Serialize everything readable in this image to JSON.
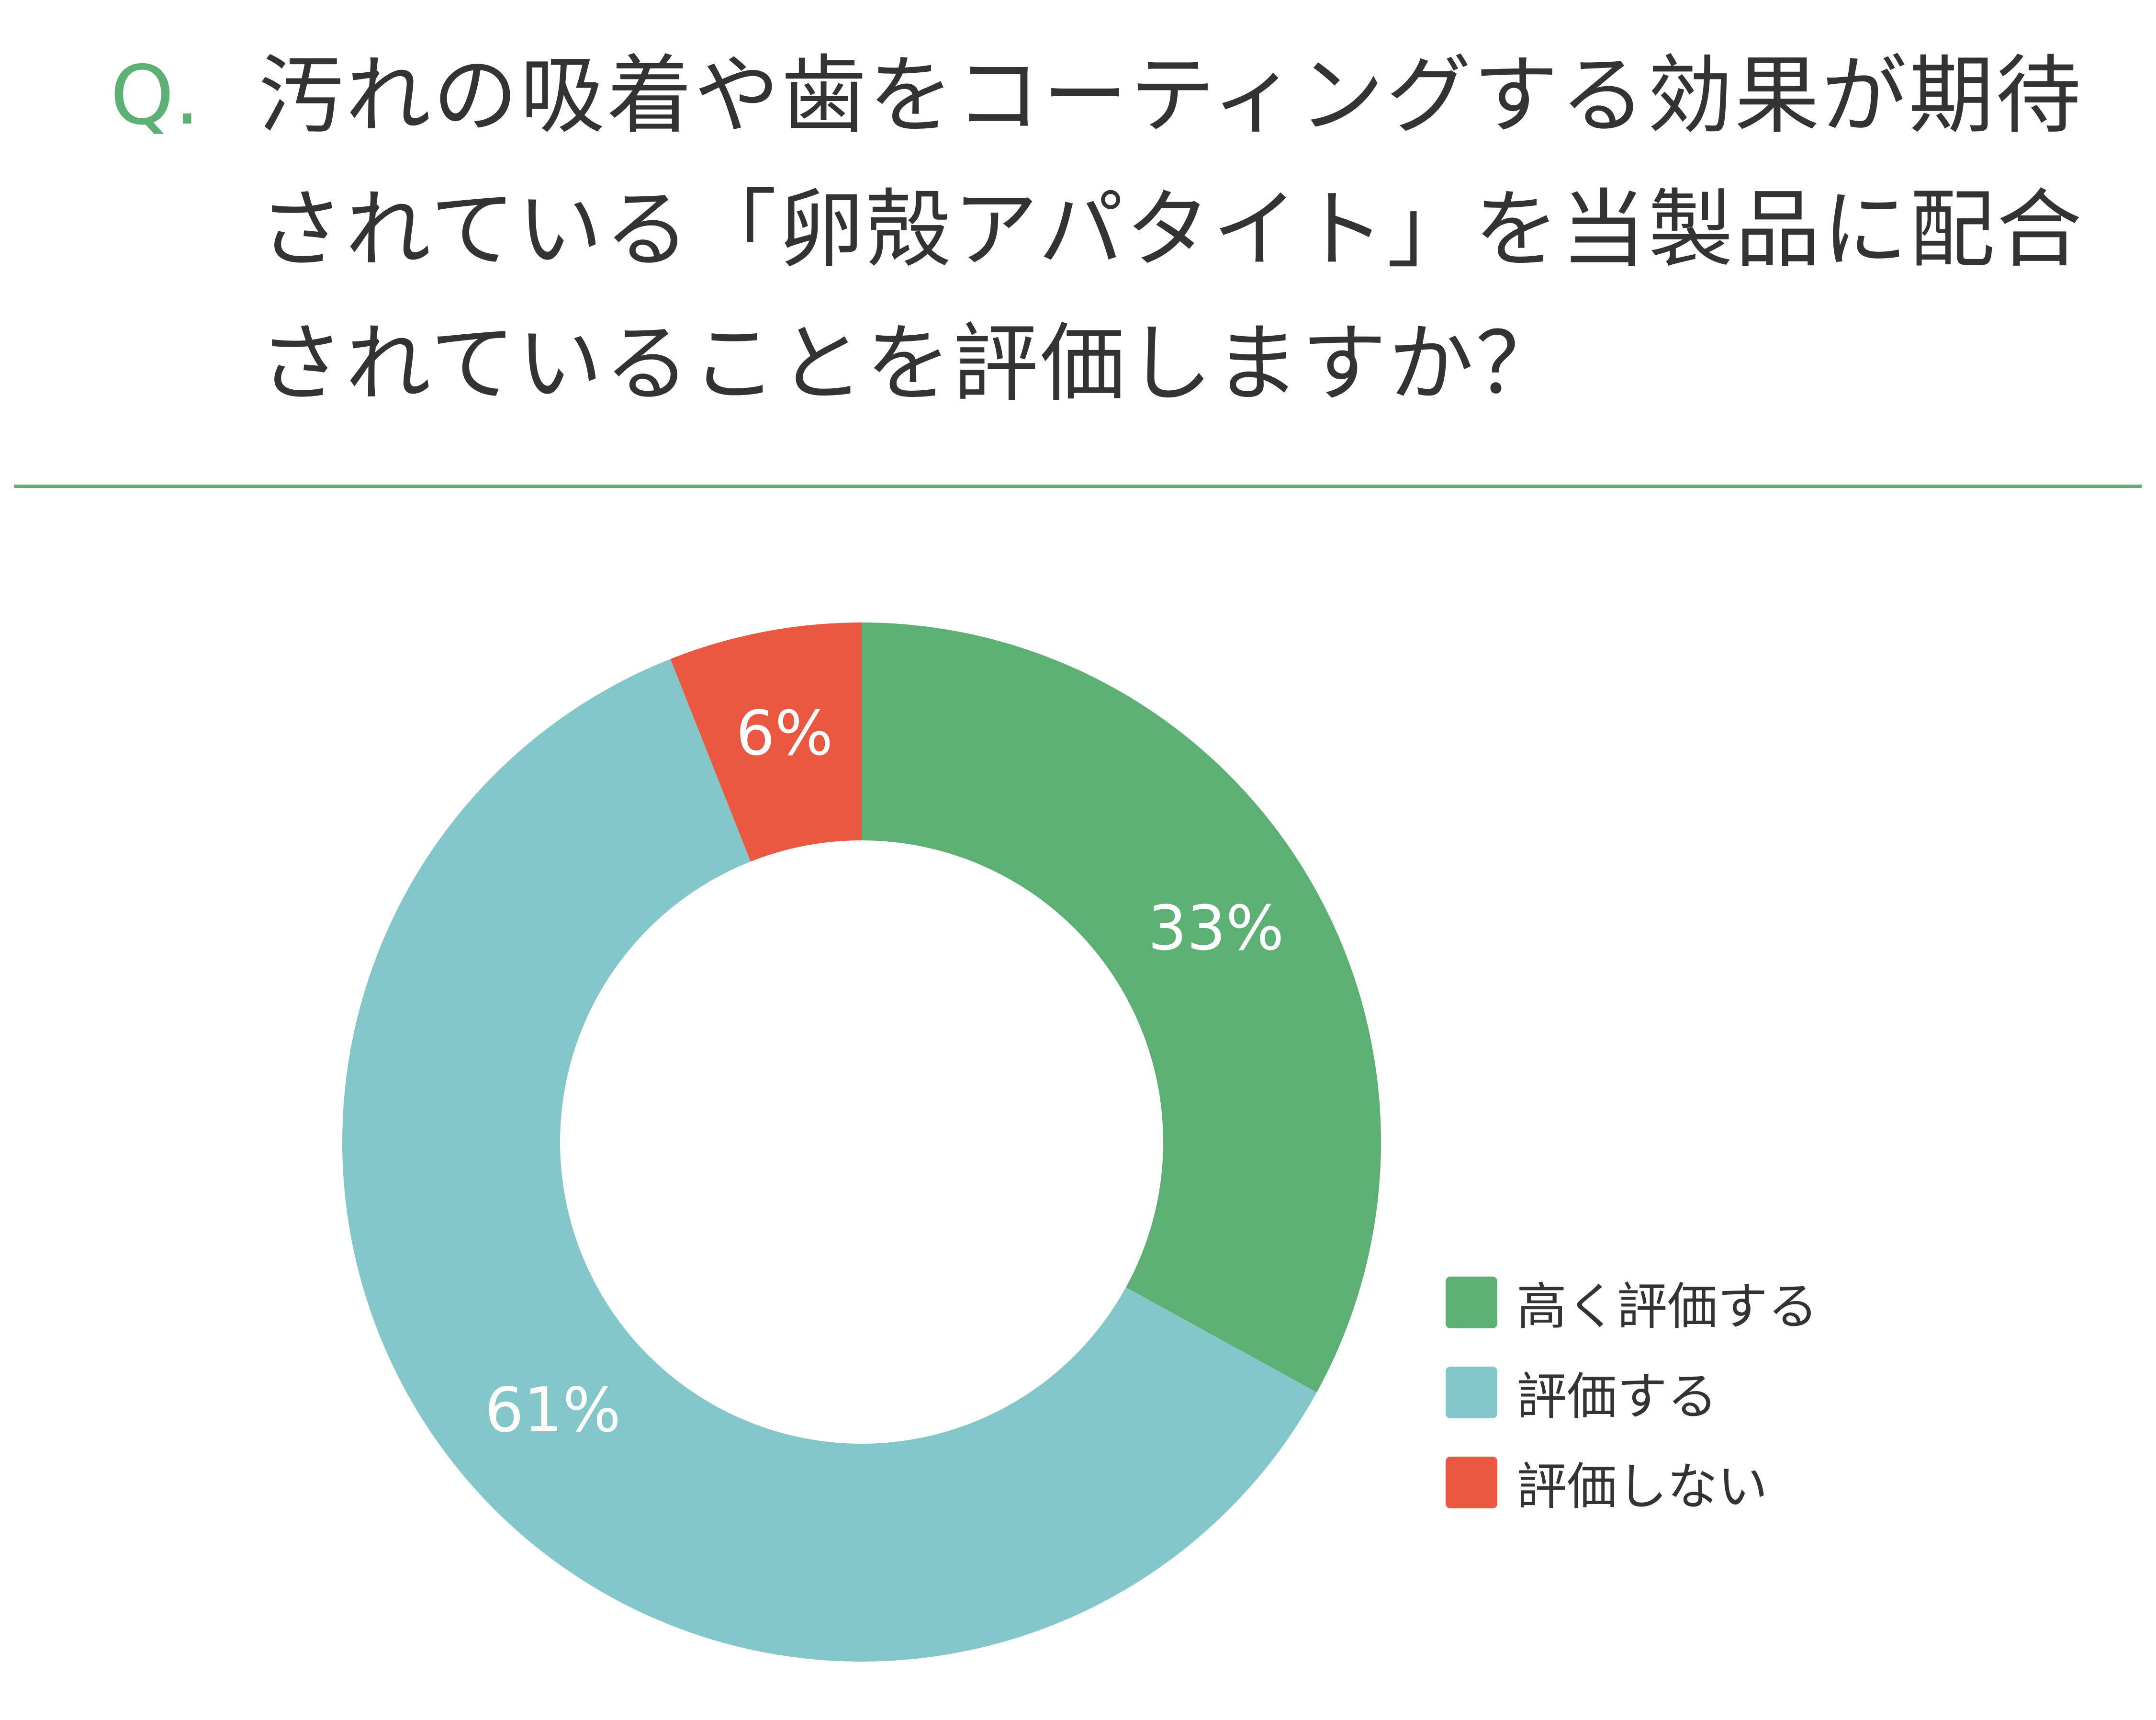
{
  "header": {
    "q_mark": "Q.",
    "question": "汚れの吸着や歯をコーティングする効果が期待されている「卵殻アパタイト」を当製品に配合されていることを評価しますか？"
  },
  "colors": {
    "accent": "#5db074",
    "green": "#5db074",
    "teal": "#83c7c8",
    "red": "#ea5841"
  },
  "chart_data": {
    "type": "pie",
    "style": "donut",
    "start": "top",
    "direction": "clockwise",
    "legend_position": "bottom-right",
    "slices": [
      {
        "label": "高く評価する",
        "value": 33,
        "value_label": "33%",
        "color": "#5db074"
      },
      {
        "label": "評価する",
        "value": 61,
        "value_label": "61%",
        "color": "#83c7c8"
      },
      {
        "label": "評価しない",
        "value": 6,
        "value_label": "6%",
        "color": "#ea5841"
      }
    ]
  },
  "legend": {
    "items": [
      {
        "label": "高く評価する",
        "color": "#5db074"
      },
      {
        "label": "評価する",
        "color": "#83c7c8"
      },
      {
        "label": "評価しない",
        "color": "#ea5841"
      }
    ]
  }
}
